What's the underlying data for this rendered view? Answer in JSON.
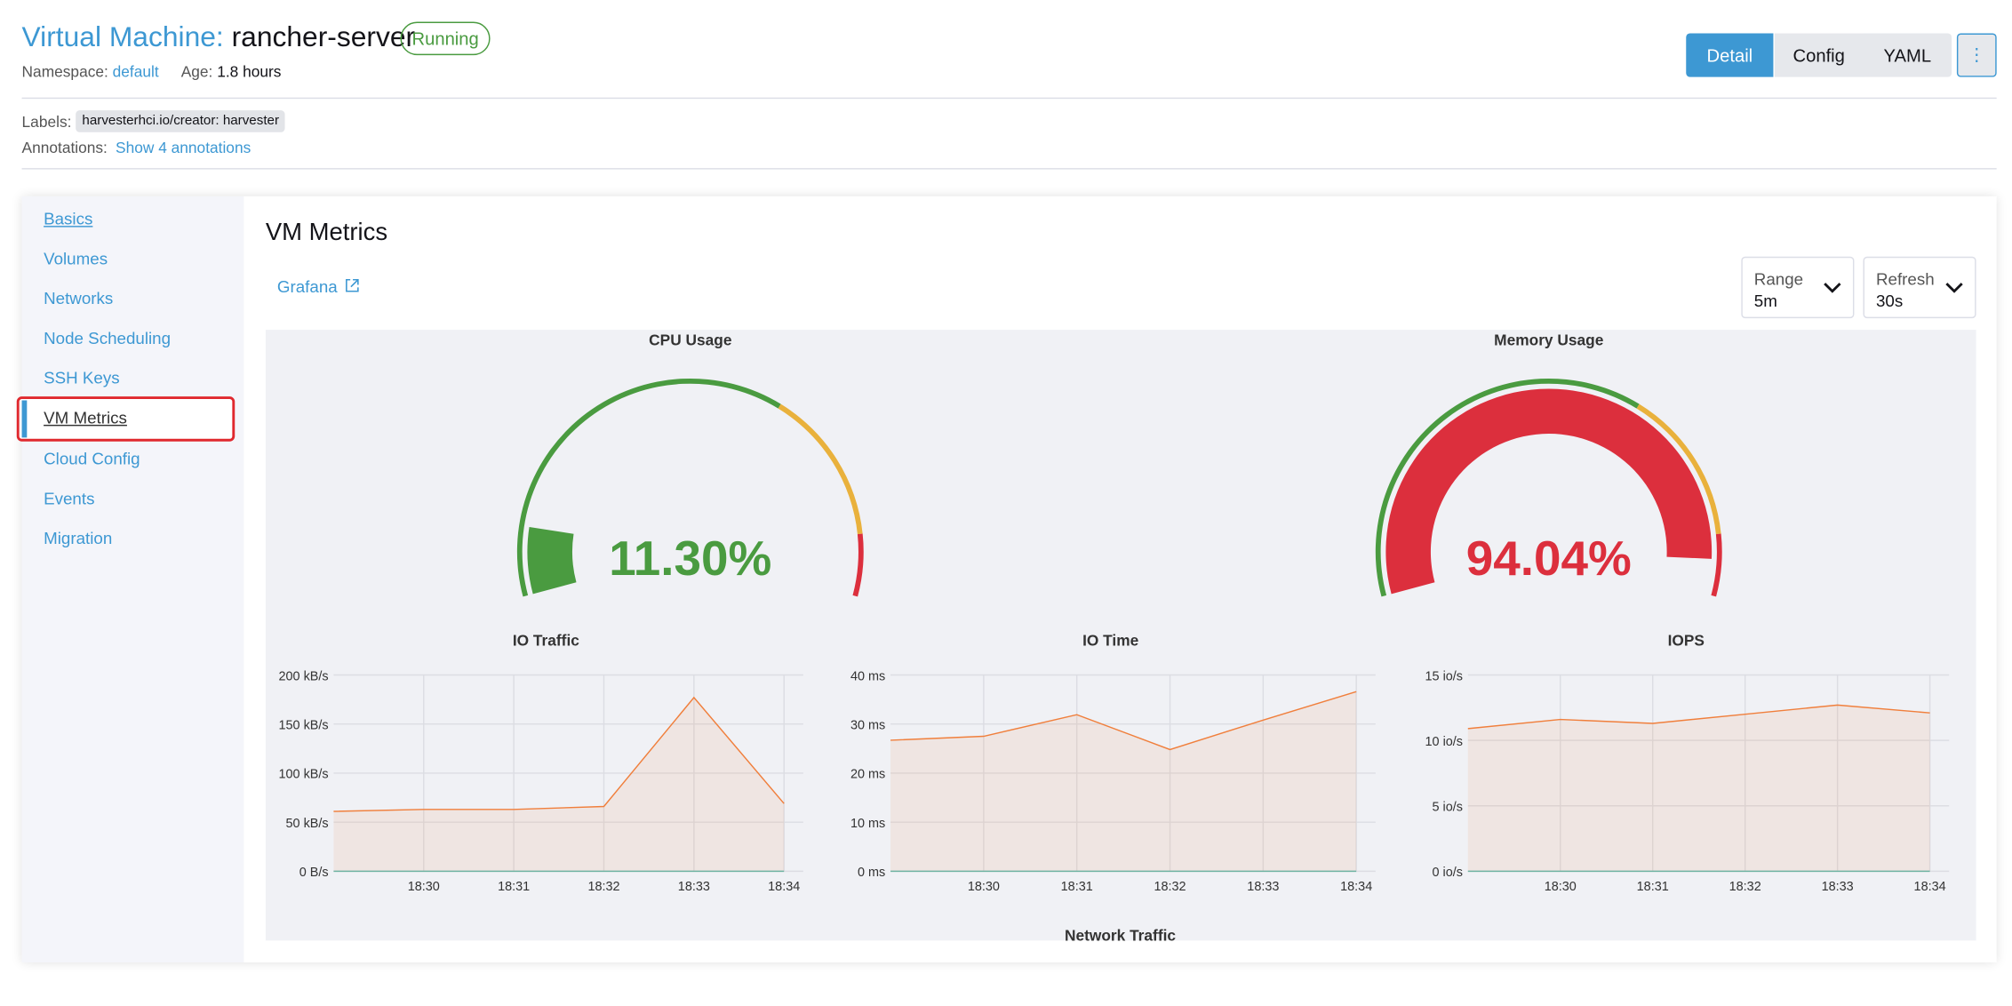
{
  "header": {
    "kind": "Virtual Machine:",
    "name": "rancher-server",
    "status": "Running",
    "namespace_label": "Namespace:",
    "namespace": "default",
    "age_label": "Age:",
    "age": "1.8 hours"
  },
  "tabs": [
    "Detail",
    "Config",
    "YAML"
  ],
  "labels": {
    "label": "Labels:",
    "tag": "harvesterhci.io/creator: harvester",
    "annotations_label": "Annotations:",
    "annotations_link": "Show 4 annotations"
  },
  "nav": [
    "Basics",
    "Volumes",
    "Networks",
    "Node Scheduling",
    "SSH Keys",
    "VM Metrics",
    "Cloud Config",
    "Events",
    "Migration"
  ],
  "panel": {
    "title": "VM Metrics",
    "grafana": "Grafana",
    "range_label": "Range",
    "range": "5m",
    "refresh_label": "Refresh",
    "refresh": "30s",
    "footer_title": "Network Traffic"
  },
  "gauges": [
    {
      "type": "gauge",
      "title": "CPU Usage",
      "value": 11.3,
      "value_label": "11.30%",
      "min": 0,
      "max": 100,
      "thresholds": [
        65,
        90
      ],
      "colors": [
        "#4a9b40",
        "#e9b13c",
        "#dc2f3d"
      ]
    },
    {
      "type": "gauge",
      "title": "Memory Usage",
      "value": 94.04,
      "value_label": "94.04%",
      "min": 0,
      "max": 100,
      "thresholds": [
        65,
        90
      ],
      "colors": [
        "#4a9b40",
        "#e9b13c",
        "#dc2f3d"
      ]
    }
  ],
  "charts": [
    {
      "type": "line",
      "title": "IO Traffic",
      "categories": [
        null,
        "18:30",
        "18:31",
        "18:32",
        "18:33",
        "18:34"
      ],
      "series": [
        {
          "color": "#f07f3c",
          "values": [
            61,
            63,
            63,
            66,
            177,
            69
          ]
        },
        {
          "color": "#6fb3a3",
          "values": [
            0,
            0,
            0,
            0,
            0,
            0
          ]
        }
      ],
      "ylim": [
        0,
        200
      ],
      "yticks": [
        {
          "value": 0,
          "label": "0 B/s"
        },
        {
          "value": 50,
          "label": "50 kB/s"
        },
        {
          "value": 100,
          "label": "100 kB/s"
        },
        {
          "value": 150,
          "label": "150 kB/s"
        },
        {
          "value": 200,
          "label": "200 kB/s"
        }
      ],
      "grid": true
    },
    {
      "type": "line",
      "title": "IO Time",
      "categories": [
        null,
        "18:30",
        "18:31",
        "18:32",
        "18:33",
        "18:34"
      ],
      "series": [
        {
          "color": "#f07f3c",
          "values": [
            26.7,
            27.5,
            31.9,
            24.8,
            30.8,
            36.6
          ]
        },
        {
          "color": "#6fb3a3",
          "values": [
            0,
            0,
            0,
            0,
            0,
            0
          ]
        }
      ],
      "ylim": [
        0,
        40
      ],
      "yticks": [
        {
          "value": 0,
          "label": "0 ms"
        },
        {
          "value": 10,
          "label": "10 ms"
        },
        {
          "value": 20,
          "label": "20 ms"
        },
        {
          "value": 30,
          "label": "30 ms"
        },
        {
          "value": 40,
          "label": "40 ms"
        }
      ],
      "grid": true
    },
    {
      "type": "line",
      "title": "IOPS",
      "categories": [
        null,
        "18:30",
        "18:31",
        "18:32",
        "18:33",
        "18:34"
      ],
      "series": [
        {
          "color": "#f07f3c",
          "values": [
            10.9,
            11.6,
            11.3,
            12.0,
            12.7,
            12.1
          ]
        },
        {
          "color": "#6fb3a3",
          "values": [
            0,
            0,
            0,
            0,
            0,
            0
          ]
        }
      ],
      "ylim": [
        0,
        15
      ],
      "yticks": [
        {
          "value": 0,
          "label": "0 io/s"
        },
        {
          "value": 5,
          "label": "5 io/s"
        },
        {
          "value": 10,
          "label": "10 io/s"
        },
        {
          "value": 15,
          "label": "15 io/s"
        }
      ],
      "grid": true
    }
  ]
}
